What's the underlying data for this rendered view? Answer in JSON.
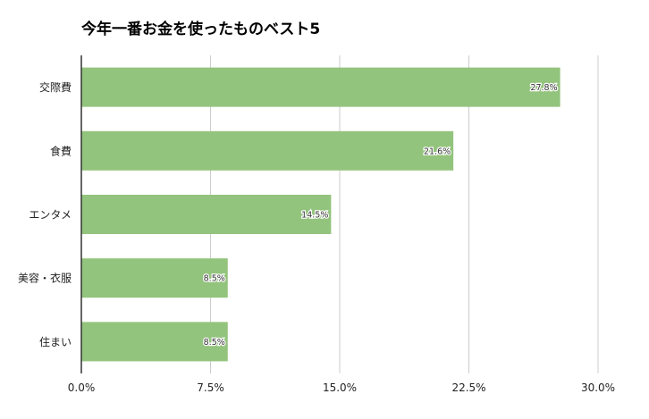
{
  "chart_data": {
    "type": "bar",
    "orientation": "horizontal",
    "title": "今年一番お金を使ったものベスト5",
    "categories": [
      "交際費",
      "食費",
      "エンタメ",
      "美容・衣服",
      "住まい"
    ],
    "values": [
      27.8,
      21.6,
      14.5,
      8.5,
      8.5
    ],
    "data_labels": [
      "27.8%",
      "21.6%",
      "14.5%",
      "8.5%",
      "8.5%"
    ],
    "xlim": [
      0,
      30
    ],
    "xticks": [
      0,
      7.5,
      15,
      22.5,
      30
    ],
    "xtick_labels": [
      "0.0%",
      "7.5%",
      "15.0%",
      "22.5%",
      "30.0%"
    ],
    "xlabel": "",
    "ylabel": "",
    "grid": true,
    "legend": "none",
    "colors": {
      "bar": "#93c47d",
      "grid": "#cccccc",
      "axis": "#333333"
    }
  }
}
